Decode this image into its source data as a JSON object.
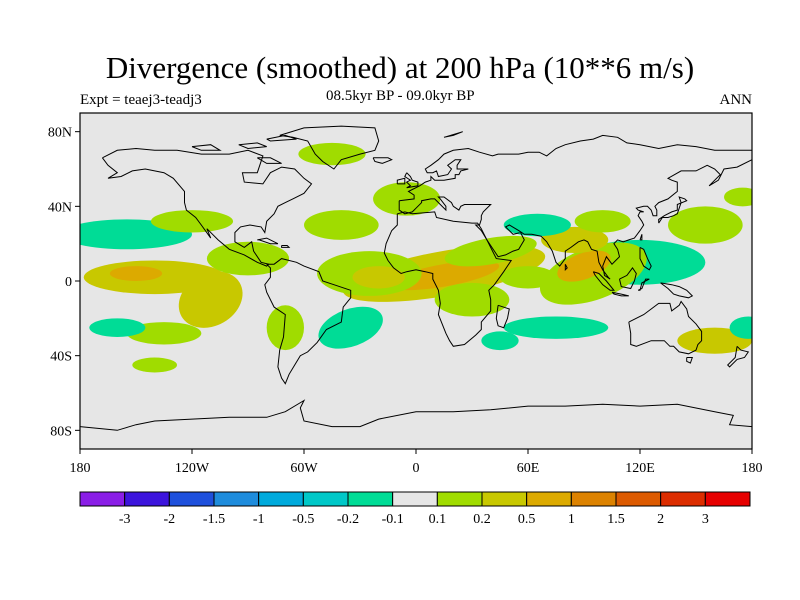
{
  "title": "Divergence (smoothed) at 200 hPa (10**6 m/s)",
  "experiment": "Expt = teaej3-teadj3",
  "period": "08.5kyr BP - 09.0kyr BP",
  "season": "ANN",
  "map": {
    "lon_range": [
      -180,
      180
    ],
    "lat_range": [
      -90,
      90
    ],
    "lat_labels": [
      {
        "lat": 80,
        "text": "80N"
      },
      {
        "lat": 40,
        "text": "40N"
      },
      {
        "lat": 0,
        "text": "0"
      },
      {
        "lat": -40,
        "text": "40S"
      },
      {
        "lat": -80,
        "text": "80S"
      }
    ],
    "lon_labels": [
      {
        "lon": -180,
        "text": "180"
      },
      {
        "lon": -120,
        "text": "120W"
      },
      {
        "lon": -60,
        "text": "60W"
      },
      {
        "lon": 0,
        "text": "0"
      },
      {
        "lon": 60,
        "text": "60E"
      },
      {
        "lon": 120,
        "text": "120E"
      },
      {
        "lon": 180,
        "text": "180"
      }
    ],
    "background_color": "#e6e6e6"
  },
  "colorbar": {
    "colors": [
      "#8a1ee6",
      "#3c14dc",
      "#1e50dc",
      "#1e8cdc",
      "#00aadc",
      "#00c8c8",
      "#00dc96",
      "#e6e6e6",
      "#a0dc00",
      "#c8c800",
      "#dcaa00",
      "#dc8200",
      "#dc5a00",
      "#dc2d00",
      "#e60000"
    ],
    "labels": [
      "-3",
      "-2",
      "-1.5",
      "-1",
      "-0.5",
      "-0.2",
      "-0.1",
      "0.1",
      "0.2",
      "0.5",
      "1",
      "1.5",
      "2",
      "3"
    ]
  },
  "field_blobs": [
    {
      "lon": 15,
      "lat": 4,
      "rlon": 55,
      "rlat": 12,
      "rot": -10,
      "level": 9
    },
    {
      "lon": 15,
      "lat": 3,
      "rlon": 30,
      "rlat": 6,
      "rot": -10,
      "level": 10
    },
    {
      "lon": 40,
      "lat": 16,
      "rlon": 25,
      "rlat": 7,
      "rot": -10,
      "level": 8
    },
    {
      "lon": -40,
      "lat": 30,
      "rlon": 20,
      "rlat": 8,
      "rot": 0,
      "level": 8
    },
    {
      "lon": -25,
      "lat": 4,
      "rlon": 28,
      "rlat": 12,
      "rot": 0,
      "level": 8
    },
    {
      "lon": -20,
      "lat": 2,
      "rlon": 14,
      "rlat": 6,
      "rot": 0,
      "level": 9
    },
    {
      "lon": -5,
      "lat": 44,
      "rlon": 18,
      "rlat": 9,
      "rot": 0,
      "level": 8
    },
    {
      "lon": -45,
      "lat": 68,
      "rlon": 18,
      "rlat": 6,
      "rot": 0,
      "level": 8
    },
    {
      "lon": 130,
      "lat": 22,
      "rlon": 60,
      "rlat": 16,
      "rot": 0,
      "level": 7
    },
    {
      "lon": 120,
      "lat": 10,
      "rlon": 35,
      "rlat": 12,
      "rot": 0,
      "level": 6
    },
    {
      "lon": 95,
      "lat": 4,
      "rlon": 30,
      "rlat": 14,
      "rot": -20,
      "level": 8
    },
    {
      "lon": 90,
      "lat": 8,
      "rlon": 15,
      "rlat": 7,
      "rot": -20,
      "level": 10
    },
    {
      "lon": 85,
      "lat": 22,
      "rlon": 18,
      "rlat": 7,
      "rot": 0,
      "level": 9
    },
    {
      "lon": 100,
      "lat": 32,
      "rlon": 15,
      "rlat": 6,
      "rot": 0,
      "level": 8
    },
    {
      "lon": 65,
      "lat": 30,
      "rlon": 18,
      "rlat": 6,
      "rot": 0,
      "level": 6
    },
    {
      "lon": 155,
      "lat": 30,
      "rlon": 20,
      "rlat": 10,
      "rot": 0,
      "level": 8
    },
    {
      "lon": 175,
      "lat": 45,
      "rlon": 10,
      "rlat": 5,
      "rot": 0,
      "level": 8
    },
    {
      "lon": -155,
      "lat": 25,
      "rlon": 35,
      "rlat": 8,
      "rot": 0,
      "level": 6
    },
    {
      "lon": -120,
      "lat": 32,
      "rlon": 22,
      "rlat": 6,
      "rot": 0,
      "level": 8
    },
    {
      "lon": -140,
      "lat": 2,
      "rlon": 38,
      "rlat": 9,
      "rot": 0,
      "level": 9
    },
    {
      "lon": -150,
      "lat": 4,
      "rlon": 14,
      "rlat": 4,
      "rot": 0,
      "level": 10
    },
    {
      "lon": -110,
      "lat": -10,
      "rlon": 18,
      "rlat": 14,
      "rot": -30,
      "level": 9
    },
    {
      "lon": -90,
      "lat": 12,
      "rlon": 22,
      "rlat": 9,
      "rot": 0,
      "level": 8
    },
    {
      "lon": -135,
      "lat": -28,
      "rlon": 20,
      "rlat": 6,
      "rot": 0,
      "level": 8
    },
    {
      "lon": -160,
      "lat": -25,
      "rlon": 15,
      "rlat": 5,
      "rot": 0,
      "level": 6
    },
    {
      "lon": -70,
      "lat": -25,
      "rlon": 10,
      "rlat": 12,
      "rot": 0,
      "level": 8
    },
    {
      "lon": -35,
      "lat": -25,
      "rlon": 18,
      "rlat": 10,
      "rot": -20,
      "level": 6
    },
    {
      "lon": 30,
      "lat": -10,
      "rlon": 20,
      "rlat": 9,
      "rot": 0,
      "level": 8
    },
    {
      "lon": 60,
      "lat": 2,
      "rlon": 15,
      "rlat": 6,
      "rot": 0,
      "level": 8
    },
    {
      "lon": 75,
      "lat": -25,
      "rlon": 28,
      "rlat": 6,
      "rot": 0,
      "level": 6
    },
    {
      "lon": 160,
      "lat": -32,
      "rlon": 20,
      "rlat": 7,
      "rot": 0,
      "level": 9
    },
    {
      "lon": 178,
      "lat": -25,
      "rlon": 10,
      "rlat": 6,
      "rot": 0,
      "level": 6
    },
    {
      "lon": 45,
      "lat": -32,
      "rlon": 10,
      "rlat": 5,
      "rot": 0,
      "level": 6
    },
    {
      "lon": -140,
      "lat": -45,
      "rlon": 12,
      "rlat": 4,
      "rot": 0,
      "level": 8
    }
  ]
}
